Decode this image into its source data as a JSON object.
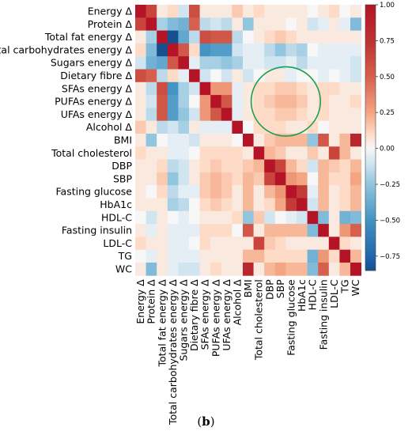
{
  "figure": {
    "caption_open": "(",
    "caption_label": "b",
    "caption_close": ")"
  },
  "chart_data": {
    "type": "heatmap",
    "variables": [
      "Energy Δ",
      "Protein Δ",
      "Total fat energy Δ",
      "Total carbohydrates energy Δ",
      "Sugars energy Δ",
      "Dietary fibre Δ",
      "SFAs energy Δ",
      "PUFAs energy Δ",
      "UFAs energy Δ",
      "Alcohol Δ",
      "BMI",
      "Total cholesterol",
      "DBP",
      "SBP",
      "Fasting glucose",
      "HbA1c",
      "HDL-C",
      "Fasting insulin",
      "LDL-C",
      "TG",
      "WC"
    ],
    "colorbar": {
      "min": -0.85,
      "max": 1.0,
      "ticks": [
        1.0,
        0.75,
        0.5,
        0.25,
        0.0,
        -0.25,
        -0.5,
        -0.75
      ],
      "tick_labels": [
        "1.00",
        "0.75",
        "0.50",
        "0.25",
        "0.00",
        "−0.25",
        "−0.50",
        "−0.75"
      ],
      "colormap": "coolwarm (blue negative, white zero, red positive)"
    },
    "matrix": [
      [
        1.0,
        0.65,
        0.05,
        0.1,
        -0.1,
        0.6,
        0.05,
        0.05,
        0.05,
        0.15,
        0.05,
        0.1,
        0.05,
        0.05,
        0.05,
        0.05,
        0.0,
        0.05,
        0.1,
        0.0,
        0.05
      ],
      [
        0.65,
        1.0,
        -0.2,
        -0.3,
        -0.35,
        0.5,
        -0.15,
        -0.1,
        -0.15,
        0.05,
        -0.25,
        0.05,
        0.05,
        0.05,
        0.0,
        0.05,
        -0.1,
        -0.05,
        0.05,
        -0.05,
        -0.3
      ],
      [
        0.05,
        -0.2,
        1.0,
        -0.85,
        -0.4,
        -0.15,
        0.6,
        0.55,
        0.55,
        -0.15,
        0.0,
        0.05,
        0.1,
        0.15,
        0.1,
        0.05,
        0.05,
        0.05,
        0.05,
        0.05,
        0.05
      ],
      [
        0.1,
        -0.3,
        -0.85,
        1.0,
        0.55,
        0.1,
        -0.5,
        -0.45,
        -0.45,
        -0.1,
        -0.05,
        -0.05,
        -0.15,
        -0.25,
        -0.15,
        -0.2,
        0.0,
        -0.05,
        -0.05,
        -0.05,
        -0.05
      ],
      [
        -0.1,
        -0.35,
        -0.4,
        0.55,
        1.0,
        -0.05,
        -0.2,
        -0.2,
        -0.25,
        -0.2,
        -0.05,
        -0.05,
        -0.1,
        -0.1,
        -0.05,
        -0.15,
        -0.05,
        -0.05,
        -0.05,
        -0.05,
        -0.1
      ],
      [
        0.6,
        0.5,
        -0.15,
        0.1,
        -0.05,
        1.0,
        -0.1,
        0.0,
        -0.1,
        0.05,
        -0.1,
        0.0,
        0.05,
        0.05,
        -0.05,
        0.0,
        0.0,
        -0.05,
        0.0,
        -0.05,
        -0.1
      ],
      [
        0.05,
        -0.15,
        0.6,
        -0.5,
        -0.2,
        -0.1,
        1.0,
        0.3,
        0.3,
        -0.05,
        0.05,
        0.1,
        0.1,
        0.15,
        0.15,
        0.1,
        0.05,
        0.1,
        0.1,
        0.05,
        0.05
      ],
      [
        0.05,
        -0.1,
        0.55,
        -0.45,
        -0.2,
        0.0,
        0.3,
        1.0,
        0.55,
        -0.05,
        0.05,
        0.1,
        0.15,
        0.2,
        0.2,
        0.15,
        0.05,
        0.1,
        0.05,
        0.05,
        0.1
      ],
      [
        0.05,
        -0.15,
        0.55,
        -0.45,
        -0.25,
        -0.1,
        0.3,
        0.55,
        1.0,
        -0.05,
        0.05,
        0.1,
        0.1,
        0.15,
        0.15,
        0.1,
        0.05,
        0.1,
        0.05,
        0.05,
        0.05
      ],
      [
        0.15,
        0.05,
        -0.15,
        -0.1,
        -0.2,
        0.05,
        -0.05,
        -0.05,
        -0.05,
        1.0,
        0.0,
        0.1,
        0.1,
        0.1,
        0.05,
        0.05,
        0.1,
        0.0,
        0.05,
        0.05,
        0.05
      ],
      [
        0.05,
        -0.25,
        0.0,
        -0.05,
        -0.05,
        -0.1,
        0.05,
        0.05,
        0.05,
        0.0,
        1.0,
        0.05,
        0.15,
        0.2,
        0.2,
        0.2,
        -0.25,
        0.55,
        0.05,
        0.2,
        0.85
      ],
      [
        0.1,
        0.05,
        0.05,
        -0.05,
        -0.05,
        0.0,
        0.1,
        0.1,
        0.1,
        0.1,
        0.05,
        1.0,
        0.2,
        0.15,
        0.05,
        0.05,
        0.15,
        0.05,
        0.65,
        0.2,
        0.05
      ],
      [
        0.05,
        0.05,
        0.1,
        -0.15,
        -0.1,
        0.05,
        0.1,
        0.15,
        0.1,
        0.1,
        0.15,
        0.2,
        1.0,
        0.65,
        0.2,
        0.1,
        -0.1,
        0.2,
        0.15,
        0.1,
        0.2
      ],
      [
        0.05,
        0.05,
        0.15,
        -0.25,
        -0.1,
        0.05,
        0.15,
        0.2,
        0.15,
        0.1,
        0.2,
        0.15,
        0.65,
        1.0,
        0.3,
        0.25,
        0.0,
        0.2,
        0.1,
        0.1,
        0.25
      ],
      [
        0.05,
        0.0,
        0.1,
        -0.15,
        -0.05,
        -0.05,
        0.15,
        0.2,
        0.15,
        0.05,
        0.2,
        0.05,
        0.2,
        0.3,
        1.0,
        0.7,
        -0.05,
        0.2,
        0.05,
        0.1,
        0.2
      ],
      [
        0.05,
        0.05,
        0.05,
        -0.2,
        -0.15,
        0.0,
        0.1,
        0.15,
        0.1,
        0.05,
        0.2,
        0.05,
        0.1,
        0.25,
        0.7,
        1.0,
        -0.1,
        0.2,
        0.05,
        0.1,
        0.2
      ],
      [
        0.0,
        -0.1,
        0.05,
        0.0,
        -0.05,
        0.0,
        0.05,
        0.05,
        0.05,
        0.1,
        -0.25,
        0.15,
        -0.1,
        0.0,
        -0.05,
        -0.1,
        1.0,
        -0.3,
        0.05,
        -0.35,
        -0.3
      ],
      [
        0.05,
        -0.05,
        0.05,
        -0.05,
        -0.05,
        -0.05,
        0.1,
        0.1,
        0.1,
        0.0,
        0.55,
        0.05,
        0.2,
        0.2,
        0.2,
        0.2,
        -0.3,
        1.0,
        0.05,
        0.3,
        0.5
      ],
      [
        0.1,
        0.05,
        0.05,
        -0.05,
        -0.05,
        0.0,
        0.1,
        0.05,
        0.05,
        0.05,
        0.05,
        0.65,
        0.15,
        0.1,
        0.05,
        0.05,
        0.05,
        0.05,
        1.0,
        0.1,
        0.05
      ],
      [
        0.0,
        -0.05,
        0.05,
        -0.05,
        -0.05,
        -0.05,
        0.05,
        0.05,
        0.05,
        0.05,
        0.2,
        0.2,
        0.1,
        0.1,
        0.1,
        0.1,
        -0.35,
        0.3,
        0.1,
        1.0,
        0.2
      ],
      [
        0.05,
        -0.3,
        0.05,
        -0.05,
        -0.1,
        -0.1,
        0.05,
        0.1,
        0.05,
        0.05,
        0.85,
        0.05,
        0.2,
        0.25,
        0.2,
        0.2,
        -0.3,
        0.5,
        0.05,
        0.2,
        1.0
      ]
    ],
    "annotation": {
      "shape": "circle",
      "color": "#1a9e4f",
      "covers_columns": [
        "Total cholesterol",
        "DBP",
        "SBP",
        "Fasting glucose",
        "HbA1c",
        "HDL-C"
      ],
      "covers_rows": [
        "Dietary fibre Δ",
        "SFAs energy Δ",
        "PUFAs energy Δ",
        "UFAs energy Δ",
        "Alcohol Δ"
      ]
    },
    "grid": false
  }
}
